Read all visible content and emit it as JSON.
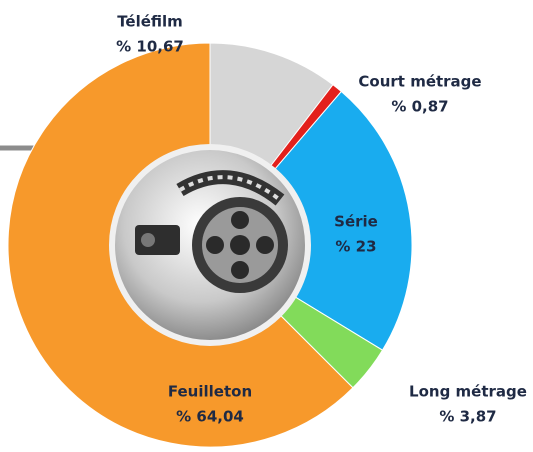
{
  "chart_data": {
    "type": "pie",
    "donut": true,
    "categories": [
      "Téléfilm",
      "Court métrage",
      "Série",
      "Long métrage",
      "Feuilleton"
    ],
    "values": [
      10.67,
      0.87,
      23,
      3.87,
      64.04
    ],
    "value_labels": [
      "% 10,67",
      "% 0,87",
      "% 23",
      "% 3,87",
      "% 64,04"
    ],
    "colors": [
      "#d6d6d6",
      "#e3201c",
      "#19acef",
      "#82db5a",
      "#f7992b"
    ]
  }
}
